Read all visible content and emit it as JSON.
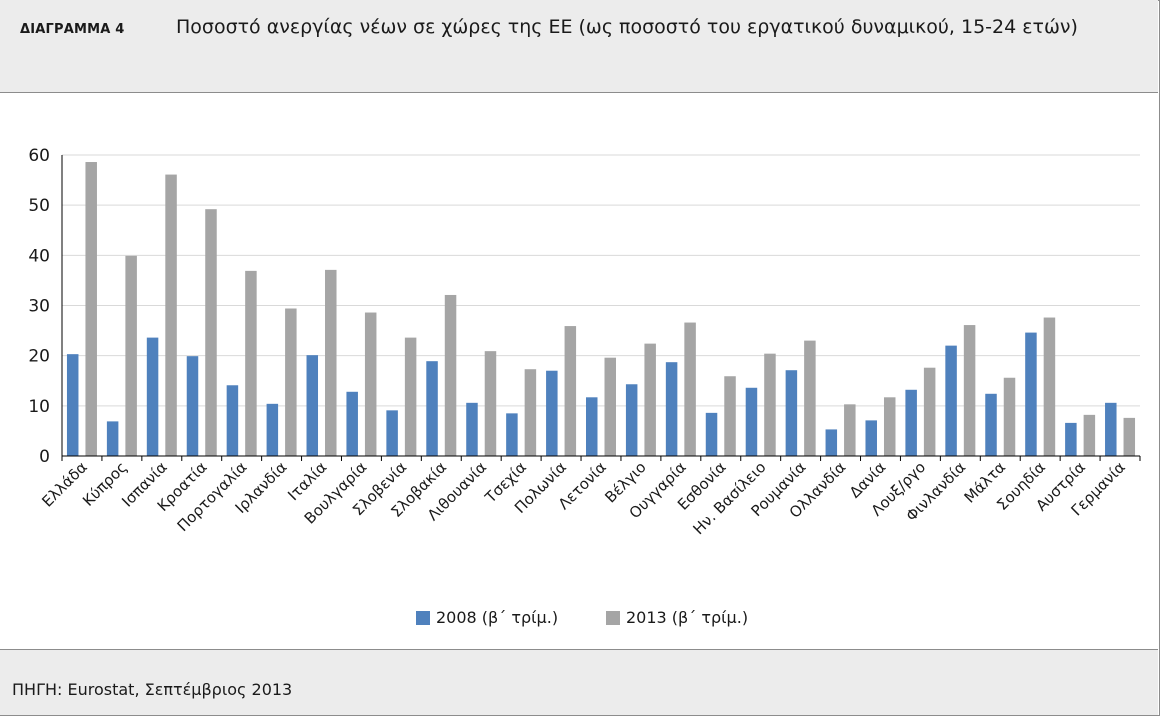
{
  "header": {
    "label": "ΔΙΑΓΡΑΜΜΑ 4",
    "title": "Ποσοστό ανεργίας νέων σε χώρες της ΕΕ (ως ποσοστό του εργατικού δυναμικού, 15-24 ετών)"
  },
  "footer": {
    "source": "ΠΗΓΗ: Eurostat, Σεπτέμβριος 2013"
  },
  "colors": {
    "series_2008": "#4f81bd",
    "series_2013": "#a5a5a5",
    "grid": "#d9d9d9",
    "axis": "#000000"
  },
  "chart_data": {
    "type": "bar",
    "title": "",
    "xlabel": "",
    "ylabel": "",
    "ylim": [
      0,
      60
    ],
    "yticks": [
      0,
      10,
      20,
      30,
      40,
      50,
      60
    ],
    "grid": true,
    "legend_position": "bottom",
    "categories": [
      "Ελλάδα",
      "Κύπρος",
      "Ισπανία",
      "Κροατία",
      "Πορτογαλία",
      "Ιρλανδία",
      "Ιταλία",
      "Βουλγαρία",
      "Σλοβενία",
      "Σλοβακία",
      "Λιθουανία",
      "Τσεχία",
      "Πολωνία",
      "Λετονία",
      "Βέλγιο",
      "Ουγγαρία",
      "Εσθονία",
      "Ην. Βασίλειο",
      "Ρουμανία",
      "Ολλανδία",
      "Δανία",
      "Λουξ/ργο",
      "Φινλανδία",
      "Μάλτα",
      "Σουηδία",
      "Αυστρία",
      "Γερμανία"
    ],
    "series": [
      {
        "name": "2008 (β΄ τρίμ.)",
        "values": [
          20.3,
          6.9,
          23.6,
          19.9,
          14.1,
          10.4,
          20.1,
          12.8,
          9.1,
          18.9,
          10.6,
          8.5,
          17.0,
          11.7,
          14.3,
          18.7,
          8.6,
          13.6,
          17.1,
          5.3,
          7.1,
          13.2,
          22.0,
          12.4,
          24.6,
          6.6,
          10.6
        ]
      },
      {
        "name": "2013 (β΄ τρίμ.)",
        "values": [
          58.6,
          39.9,
          56.1,
          49.2,
          36.9,
          29.4,
          37.1,
          28.6,
          23.6,
          32.1,
          20.9,
          17.3,
          25.9,
          19.6,
          22.4,
          26.6,
          15.9,
          20.4,
          23.0,
          10.3,
          11.7,
          17.6,
          26.1,
          15.6,
          27.6,
          8.2,
          7.6
        ]
      }
    ]
  }
}
